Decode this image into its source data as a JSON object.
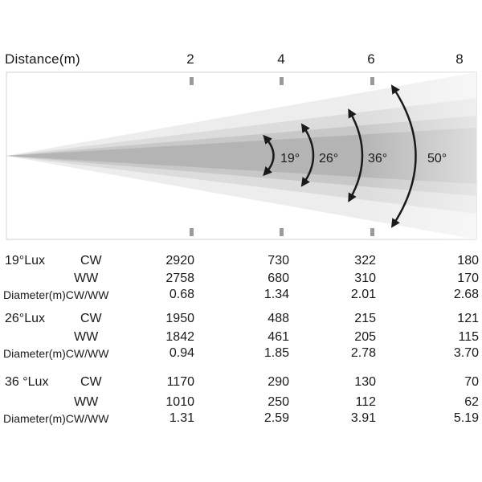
{
  "header": {
    "distance_label": "Distance(m)",
    "distances": [
      "2",
      "4",
      "6",
      "8"
    ]
  },
  "beams": {
    "angles": [
      "19°",
      "26°",
      "36°",
      "50°"
    ]
  },
  "table": {
    "groups": [
      {
        "title": "19°Lux",
        "rows": [
          {
            "label": "CW",
            "values": [
              "2920",
              "730",
              "322",
              "180"
            ]
          },
          {
            "label": "WW",
            "values": [
              "2758",
              "680",
              "310",
              "170"
            ]
          },
          {
            "label": "Diameter(m)CW/WW",
            "values": [
              "0.68",
              "1.34",
              "2.01",
              "2.68"
            ]
          }
        ]
      },
      {
        "title": "26°Lux",
        "rows": [
          {
            "label": "CW",
            "values": [
              "1950",
              "488",
              "215",
              "121"
            ]
          },
          {
            "label": "WW",
            "values": [
              "1842",
              "461",
              "205",
              "115"
            ]
          },
          {
            "label": "Diameter(m)CW/WW",
            "values": [
              "0.94",
              "1.85",
              "2.78",
              "3.70"
            ]
          }
        ]
      },
      {
        "title": "36 °Lux",
        "rows": [
          {
            "label": "CW",
            "values": [
              "1170",
              "290",
              "130",
              "70"
            ]
          },
          {
            "label": "WW",
            "values": [
              "1010",
              "250",
              "112",
              "62"
            ]
          },
          {
            "label": "Diameter(m)CW/WW",
            "values": [
              "1.31",
              "2.59",
              "3.91",
              "5.19"
            ]
          }
        ]
      }
    ]
  }
}
